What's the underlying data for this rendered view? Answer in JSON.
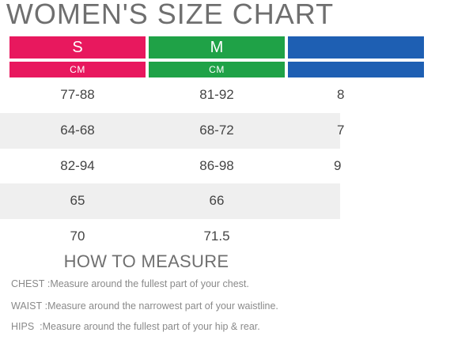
{
  "title": "WOMEN'S SIZE CHART",
  "sizes": [
    {
      "label": "S",
      "unit": "CM",
      "color": "#e8185e"
    },
    {
      "label": "M",
      "unit": "CM",
      "color": "#1fa247"
    },
    {
      "label": "",
      "unit": "",
      "color": "#1e5fb3"
    }
  ],
  "rows": [
    {
      "values": [
        "77-88",
        "81-92",
        "8"
      ]
    },
    {
      "values": [
        "64-68",
        "68-72",
        "7"
      ]
    },
    {
      "values": [
        "82-94",
        "86-98",
        "9"
      ]
    },
    {
      "values": [
        "65",
        "66",
        ""
      ]
    },
    {
      "values": [
        "70",
        "71.5",
        ""
      ]
    }
  ],
  "how_to_measure": {
    "title": "HOW TO MEASURE",
    "items": [
      {
        "label": "CHEST : ",
        "desc": "Measure around the fullest part of your chest."
      },
      {
        "label": "WAIST : ",
        "desc": "Measure around the narrowest part of your waistline."
      },
      {
        "label": "HIPS  : ",
        "desc": "Measure around the fullest part of your hip & rear."
      }
    ]
  }
}
